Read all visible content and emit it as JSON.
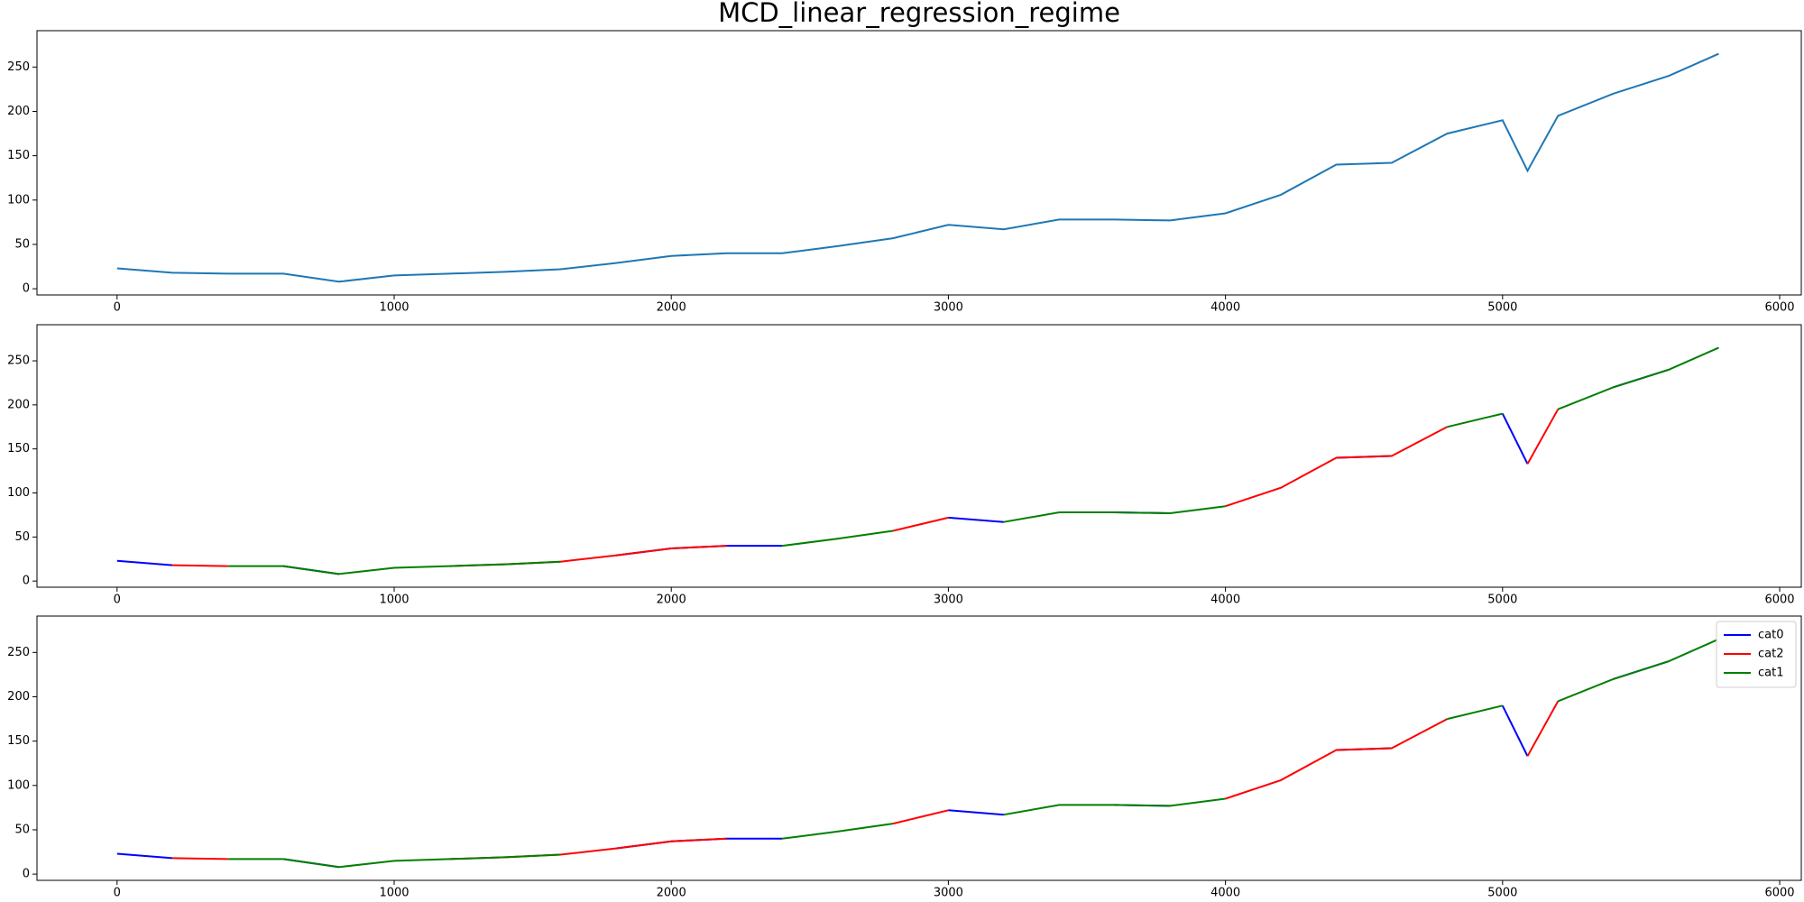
{
  "chart_data": [
    {
      "type": "line",
      "title": "MCD_linear_regression_regime",
      "x": [
        0,
        200,
        400,
        600,
        800,
        1000,
        1200,
        1400,
        1600,
        1800,
        2000,
        2200,
        2400,
        2600,
        2800,
        3000,
        3200,
        3400,
        3600,
        3800,
        4000,
        4200,
        4400,
        4600,
        4800,
        5000,
        5090,
        5200,
        5400,
        5600,
        5780
      ],
      "series": [
        {
          "color": "#1f77b4",
          "values": [
            23,
            18,
            17,
            17,
            8,
            15,
            17,
            19,
            22,
            29,
            37,
            40,
            40,
            48,
            57,
            72,
            67,
            78,
            78,
            77,
            85,
            106,
            140,
            142,
            175,
            190,
            133,
            195,
            220,
            240,
            265
          ]
        }
      ],
      "xlim": [
        -289,
        6078
      ],
      "ylim": [
        -7,
        291
      ],
      "xticks": [
        0,
        1000,
        2000,
        3000,
        4000,
        5000,
        6000
      ],
      "yticks": [
        0,
        50,
        100,
        150,
        200,
        250
      ]
    },
    {
      "type": "line",
      "x": [
        0,
        200,
        400,
        600,
        800,
        1000,
        1200,
        1400,
        1600,
        1800,
        2000,
        2200,
        2400,
        2600,
        2800,
        3000,
        3200,
        3400,
        3600,
        3800,
        4000,
        4200,
        4400,
        4600,
        4800,
        5000,
        5090,
        5200,
        5400,
        5600,
        5780
      ],
      "series": [
        {
          "color": "#0000ff",
          "values": [
            23,
            18,
            null,
            17,
            8,
            null,
            null,
            null,
            null,
            29,
            37,
            40,
            40,
            null,
            null,
            72,
            67,
            null,
            78,
            77,
            null,
            null,
            140,
            142,
            null,
            190,
            133,
            null,
            220,
            240,
            null
          ]
        },
        {
          "color": "#ff0000",
          "values": [
            null,
            18,
            17,
            null,
            null,
            null,
            17,
            19,
            22,
            29,
            37,
            40,
            null,
            null,
            57,
            72,
            null,
            null,
            null,
            null,
            85,
            106,
            140,
            142,
            175,
            null,
            133,
            195,
            null,
            null,
            null
          ]
        },
        {
          "color": "#008000",
          "values": [
            null,
            null,
            17,
            17,
            8,
            15,
            17,
            19,
            22,
            null,
            null,
            null,
            40,
            48,
            57,
            null,
            67,
            78,
            78,
            77,
            85,
            null,
            null,
            null,
            175,
            190,
            null,
            195,
            220,
            240,
            265
          ]
        }
      ],
      "xlim": [
        -289,
        6078
      ],
      "ylim": [
        -7,
        291
      ],
      "xticks": [
        0,
        1000,
        2000,
        3000,
        4000,
        5000,
        6000
      ],
      "yticks": [
        0,
        50,
        100,
        150,
        200,
        250
      ]
    },
    {
      "type": "line",
      "x": [
        0,
        200,
        400,
        600,
        800,
        1000,
        1200,
        1400,
        1600,
        1800,
        2000,
        2200,
        2400,
        2600,
        2800,
        3000,
        3200,
        3400,
        3600,
        3800,
        4000,
        4200,
        4400,
        4600,
        4800,
        5000,
        5090,
        5200,
        5400,
        5600,
        5780
      ],
      "series": [
        {
          "name": "cat0",
          "color": "#0000ff",
          "values": [
            23,
            18,
            null,
            17,
            8,
            null,
            null,
            null,
            null,
            29,
            37,
            40,
            40,
            null,
            null,
            72,
            67,
            null,
            78,
            77,
            null,
            null,
            140,
            142,
            null,
            190,
            133,
            null,
            220,
            240,
            null
          ]
        },
        {
          "name": "cat2",
          "color": "#ff0000",
          "values": [
            null,
            18,
            17,
            null,
            null,
            null,
            17,
            19,
            22,
            29,
            37,
            40,
            null,
            null,
            57,
            72,
            null,
            null,
            null,
            null,
            85,
            106,
            140,
            142,
            175,
            null,
            133,
            195,
            null,
            null,
            null
          ]
        },
        {
          "name": "cat1",
          "color": "#008000",
          "values": [
            null,
            null,
            17,
            17,
            8,
            15,
            17,
            19,
            22,
            null,
            null,
            null,
            40,
            48,
            57,
            null,
            67,
            78,
            78,
            77,
            85,
            null,
            null,
            null,
            175,
            190,
            null,
            195,
            220,
            240,
            265
          ]
        }
      ],
      "xlim": [
        -289,
        6078
      ],
      "ylim": [
        -7,
        291
      ],
      "xticks": [
        0,
        1000,
        2000,
        3000,
        4000,
        5000,
        6000
      ],
      "yticks": [
        0,
        50,
        100,
        150,
        200,
        250
      ],
      "legend": "upper right"
    }
  ]
}
